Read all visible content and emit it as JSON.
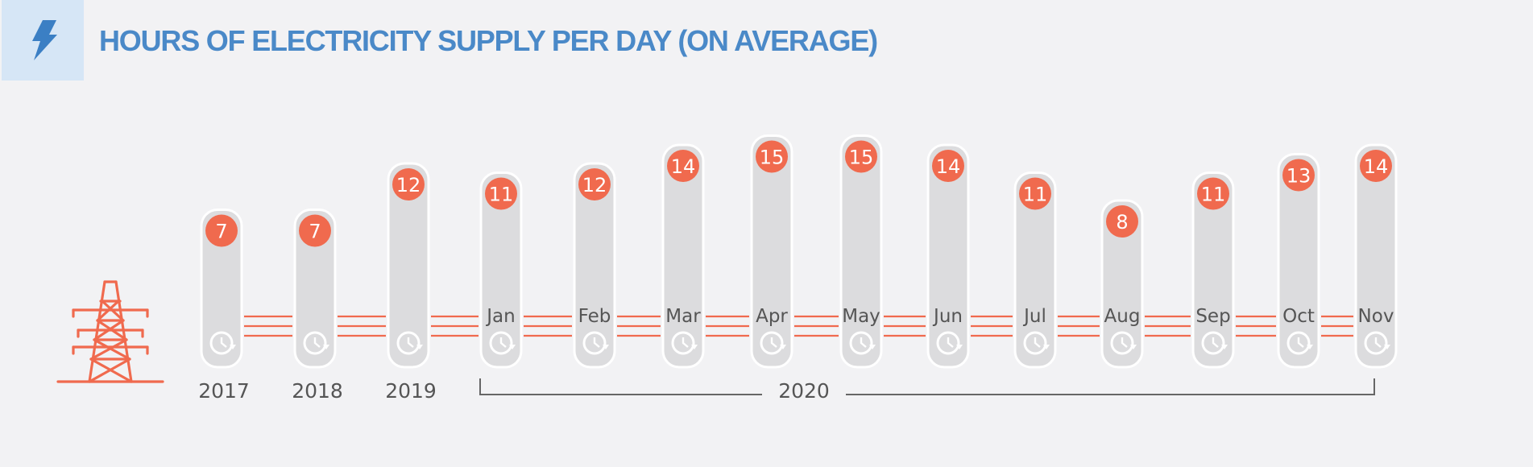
{
  "header": {
    "title": "HOURS OF ELECTRICITY SUPPLY PER DAY (ON AVERAGE)",
    "icon": "lightning-bolt-icon"
  },
  "decoration": {
    "icon": "power-pylon-icon"
  },
  "colors": {
    "title": "#4a89c8",
    "accent": "#f06a4e",
    "bar": "#dcdcde",
    "background": "#f2f2f4",
    "icon_box": "#d6e6f6",
    "text": "#555555"
  },
  "chart_data": {
    "type": "bar",
    "title": "HOURS OF ELECTRICITY SUPPLY PER DAY (ON AVERAGE)",
    "categories": [
      "2017",
      "2018",
      "2019",
      "Jan",
      "Feb",
      "Mar",
      "Apr",
      "May",
      "Jun",
      "Jul",
      "Aug",
      "Sep",
      "Oct",
      "Nov"
    ],
    "inner_labels": [
      "",
      "",
      "",
      "Jan",
      "Feb",
      "Mar",
      "Apr",
      "May",
      "Jun",
      "Jul",
      "Aug",
      "Sep",
      "Oct",
      "Nov"
    ],
    "below_labels": [
      "2017",
      "2018",
      "2019"
    ],
    "group_label": "2020",
    "group_span": [
      "Jan",
      "Nov"
    ],
    "values": [
      7,
      7,
      12,
      11,
      12,
      14,
      15,
      15,
      14,
      11,
      8,
      11,
      13,
      14
    ],
    "xlabel": "",
    "ylabel": "",
    "legend": "none",
    "grid": false
  }
}
